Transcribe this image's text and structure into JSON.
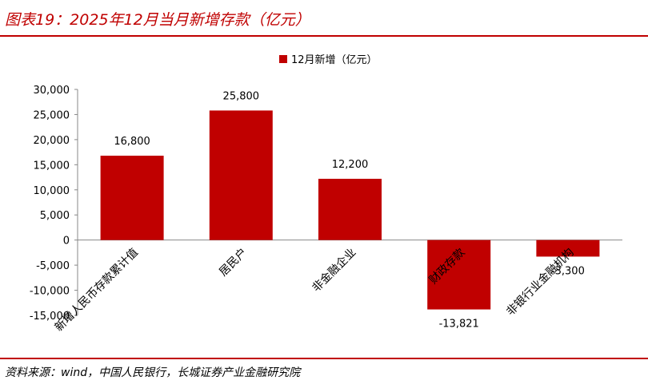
{
  "title": "图表19：2025年12月当月新增存款（亿元）",
  "source": "资料来源：wind，中国人民银行，长城证券产业金融研究院",
  "colors": {
    "accent": "#c00000",
    "bar": "#c00000"
  },
  "chart_data": {
    "type": "bar",
    "categories": [
      "新增人民币存款累计值",
      "居民户",
      "非金融企业",
      "财政存款",
      "非银行业金融机构"
    ],
    "series": [
      {
        "name": "12月新增（亿元）",
        "values": [
          16800,
          25800,
          12200,
          -13821,
          -3300
        ]
      }
    ],
    "data_labels": [
      "16,800",
      "25,800",
      "12,200",
      "-13,821",
      "-3,300"
    ],
    "ylim": [
      -15000,
      30000
    ],
    "yticks": [
      30000,
      25000,
      20000,
      15000,
      10000,
      5000,
      0,
      -5000,
      -10000,
      -15000
    ],
    "ytick_labels": [
      "30,000",
      "25,000",
      "20,000",
      "15,000",
      "10,000",
      "5,000",
      "0",
      "-5,000",
      "-10,000",
      "-15,000"
    ],
    "legend_position": "top-center",
    "grid": false
  }
}
